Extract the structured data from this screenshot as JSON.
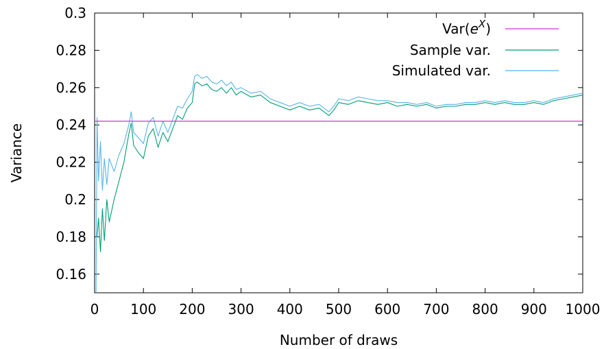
{
  "chart_data": {
    "type": "line",
    "xlabel": "Number of draws",
    "ylabel": "Variance",
    "xlim": [
      0,
      1000
    ],
    "ylim": [
      0.15,
      0.3
    ],
    "x_ticks": [
      0,
      100,
      200,
      300,
      400,
      500,
      600,
      700,
      800,
      900,
      1000
    ],
    "y_ticks": [
      0.16,
      0.18,
      0.2,
      0.22,
      0.24,
      0.26,
      0.28,
      0.3
    ],
    "x_tick_labels": [
      "0",
      "100",
      "200",
      "300",
      "400",
      "500",
      "600",
      "700",
      "800",
      "900",
      "1000"
    ],
    "y_tick_labels": [
      "0.16",
      "0.18",
      "0.2",
      "0.22",
      "0.24",
      "0.26",
      "0.28",
      "0.3"
    ],
    "grid": false,
    "legend_position": "top-right",
    "reference": {
      "legend_base": "Var(",
      "legend_e": "e",
      "legend_sup": "X",
      "legend_close": ")",
      "value": 0.242,
      "color": "#cc33cc"
    },
    "series": [
      {
        "name": "Sample var.",
        "color": "#009e73",
        "x": [
          5,
          8,
          12,
          16,
          20,
          25,
          30,
          40,
          50,
          60,
          70,
          75,
          80,
          90,
          100,
          110,
          120,
          130,
          140,
          150,
          160,
          170,
          180,
          190,
          200,
          205,
          210,
          220,
          230,
          240,
          250,
          260,
          270,
          280,
          290,
          300,
          320,
          340,
          360,
          380,
          400,
          420,
          440,
          460,
          480,
          490,
          500,
          520,
          540,
          560,
          580,
          600,
          620,
          640,
          660,
          680,
          700,
          720,
          740,
          760,
          780,
          800,
          820,
          840,
          860,
          880,
          900,
          920,
          940,
          960,
          980,
          1000
        ],
        "y": [
          0.18,
          0.19,
          0.172,
          0.195,
          0.178,
          0.2,
          0.188,
          0.2,
          0.21,
          0.22,
          0.235,
          0.241,
          0.229,
          0.225,
          0.222,
          0.234,
          0.238,
          0.228,
          0.236,
          0.231,
          0.238,
          0.245,
          0.243,
          0.249,
          0.252,
          0.262,
          0.263,
          0.261,
          0.262,
          0.259,
          0.258,
          0.26,
          0.257,
          0.26,
          0.256,
          0.258,
          0.255,
          0.256,
          0.252,
          0.25,
          0.248,
          0.25,
          0.248,
          0.249,
          0.245,
          0.248,
          0.252,
          0.251,
          0.253,
          0.252,
          0.251,
          0.252,
          0.25,
          0.251,
          0.25,
          0.251,
          0.249,
          0.25,
          0.25,
          0.251,
          0.251,
          0.252,
          0.251,
          0.252,
          0.251,
          0.251,
          0.252,
          0.251,
          0.253,
          0.254,
          0.255,
          0.256
        ]
      },
      {
        "name": "Simulated var.",
        "color": "#56b4e9",
        "x": [
          3,
          5,
          8,
          12,
          16,
          20,
          25,
          30,
          40,
          50,
          60,
          70,
          75,
          80,
          90,
          100,
          110,
          120,
          130,
          140,
          150,
          160,
          170,
          180,
          190,
          200,
          205,
          210,
          220,
          230,
          240,
          250,
          260,
          270,
          280,
          290,
          300,
          320,
          340,
          360,
          380,
          400,
          420,
          440,
          460,
          480,
          490,
          500,
          520,
          540,
          560,
          580,
          600,
          620,
          640,
          660,
          680,
          700,
          720,
          740,
          760,
          780,
          800,
          820,
          840,
          860,
          880,
          900,
          920,
          940,
          960,
          980,
          1000
        ],
        "y": [
          0.15,
          0.244,
          0.21,
          0.231,
          0.205,
          0.222,
          0.208,
          0.222,
          0.215,
          0.224,
          0.23,
          0.24,
          0.247,
          0.236,
          0.233,
          0.23,
          0.241,
          0.244,
          0.234,
          0.242,
          0.236,
          0.243,
          0.25,
          0.249,
          0.254,
          0.258,
          0.266,
          0.267,
          0.265,
          0.266,
          0.263,
          0.262,
          0.264,
          0.261,
          0.263,
          0.259,
          0.26,
          0.257,
          0.258,
          0.254,
          0.252,
          0.25,
          0.252,
          0.25,
          0.251,
          0.247,
          0.25,
          0.254,
          0.253,
          0.255,
          0.254,
          0.253,
          0.253,
          0.252,
          0.252,
          0.251,
          0.252,
          0.25,
          0.251,
          0.251,
          0.252,
          0.252,
          0.253,
          0.252,
          0.253,
          0.252,
          0.252,
          0.253,
          0.252,
          0.254,
          0.255,
          0.256,
          0.257
        ]
      }
    ]
  }
}
